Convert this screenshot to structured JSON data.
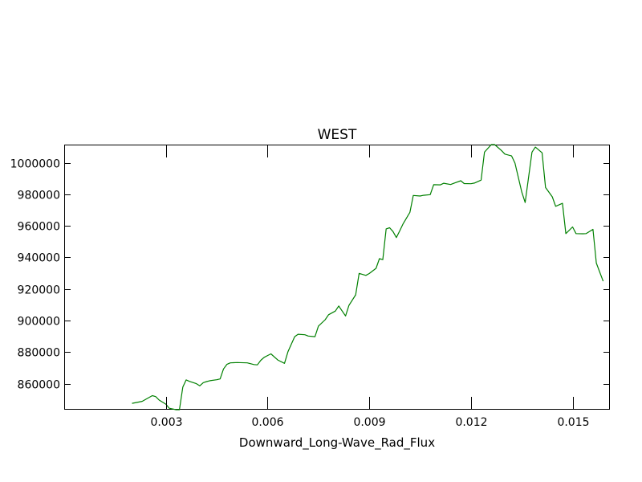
{
  "chart_data": {
    "type": "line",
    "title": "WEST",
    "xlabel": "Downward_Long-Wave_Rad_Flux",
    "ylabel": "",
    "xlim": [
      0.0,
      0.0161
    ],
    "ylim": [
      843500,
      1011500
    ],
    "xticks": [
      0.003,
      0.006,
      0.009,
      0.012,
      0.015
    ],
    "xtick_labels": [
      "0.003",
      "0.006",
      "0.009",
      "0.012",
      "0.015"
    ],
    "yticks": [
      860000,
      880000,
      900000,
      920000,
      940000,
      960000,
      980000,
      1000000
    ],
    "ytick_labels": [
      "860000",
      "880000",
      "900000",
      "920000",
      "940000",
      "960000",
      "980000",
      "1000000"
    ],
    "grid": false,
    "series": [
      {
        "color": "#008000",
        "x": [
          0.002,
          0.0023,
          0.0026,
          0.0027,
          0.0028,
          0.003,
          0.0031,
          0.0033,
          0.0034,
          0.0035,
          0.0036,
          0.0037,
          0.0039,
          0.004,
          0.0041,
          0.0042,
          0.0043,
          0.0045,
          0.0046,
          0.0047,
          0.0048,
          0.0049,
          0.005,
          0.0051,
          0.0054,
          0.0056,
          0.0057,
          0.0058,
          0.0059,
          0.006,
          0.0061,
          0.0063,
          0.0065,
          0.0066,
          0.0068,
          0.0069,
          0.0071,
          0.0072,
          0.0074,
          0.0075,
          0.0077,
          0.0078,
          0.008,
          0.0081,
          0.0083,
          0.0084,
          0.0086,
          0.0087,
          0.0089,
          0.009,
          0.0092,
          0.0093,
          0.0094,
          0.0095,
          0.0096,
          0.0097,
          0.0098,
          0.0099,
          0.01,
          0.0102,
          0.0103,
          0.0105,
          0.0106,
          0.0108,
          0.0109,
          0.0111,
          0.0112,
          0.0114,
          0.0115,
          0.0117,
          0.0118,
          0.012,
          0.0121,
          0.0123,
          0.0124,
          0.0126,
          0.0127,
          0.0129,
          0.013,
          0.0132,
          0.0133,
          0.0135,
          0.0136,
          0.0138,
          0.0139,
          0.0141,
          0.0142,
          0.0144,
          0.0145,
          0.0147,
          0.0148,
          0.015,
          0.0151,
          0.0153,
          0.0154,
          0.0156,
          0.0157,
          0.0159
        ],
        "y": [
          847500,
          848800,
          852400,
          851800,
          849600,
          847000,
          844400,
          843500,
          843500,
          857800,
          862400,
          861400,
          860000,
          858600,
          860600,
          861300,
          861900,
          862500,
          863000,
          869300,
          872200,
          873200,
          873300,
          873400,
          873200,
          872100,
          871900,
          874800,
          876700,
          877800,
          878900,
          875000,
          872900,
          880200,
          889800,
          891300,
          891000,
          890200,
          889800,
          896500,
          900500,
          903700,
          906000,
          909200,
          902900,
          909600,
          916300,
          929900,
          928600,
          929800,
          933100,
          939200,
          938600,
          958100,
          958800,
          956400,
          952600,
          956800,
          961400,
          968600,
          979300,
          978900,
          979400,
          979800,
          986100,
          986000,
          987000,
          986200,
          987000,
          988600,
          986800,
          986700,
          987100,
          989000,
          1006700,
          1011500,
          1011500,
          1007800,
          1005500,
          1004300,
          999800,
          981400,
          974800,
          1006700,
          1009900,
          1006300,
          984300,
          978400,
          972400,
          974300,
          955100,
          959300,
          955100,
          955000,
          955100,
          957800,
          936400,
          924900
        ]
      }
    ]
  }
}
